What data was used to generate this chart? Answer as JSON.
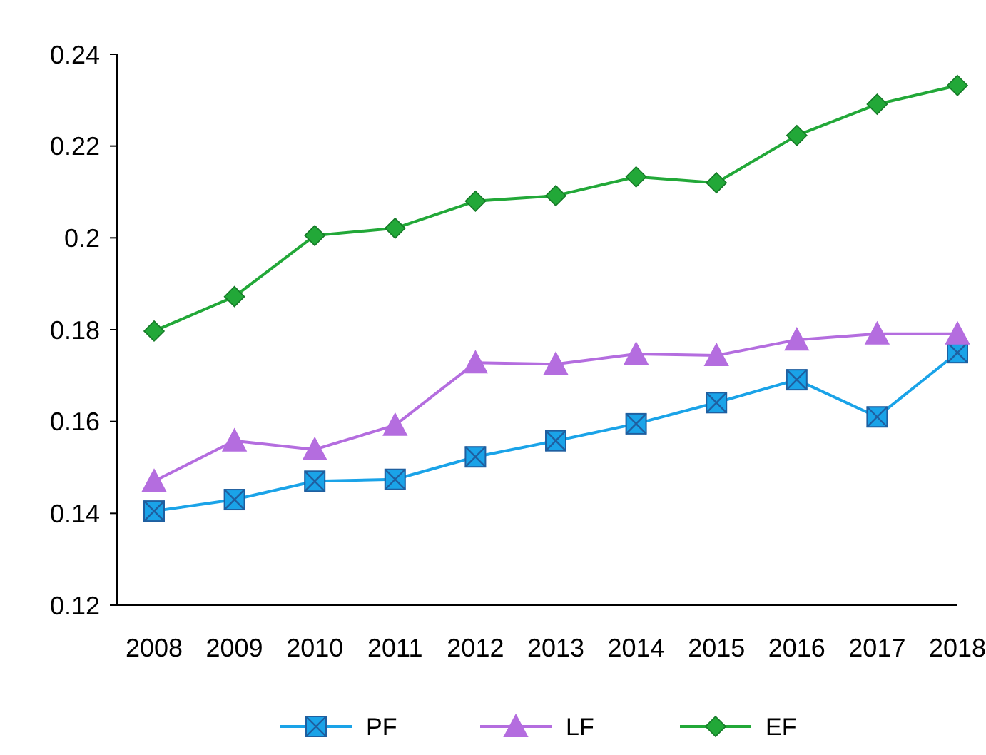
{
  "chart_data": {
    "type": "line",
    "categories": [
      "2008",
      "2009",
      "2010",
      "2011",
      "2012",
      "2013",
      "2014",
      "2015",
      "2016",
      "2017",
      "2018"
    ],
    "series": [
      {
        "name": "PF",
        "color": "#1aa3e8",
        "marker": "square",
        "values": [
          0.1405,
          0.143,
          0.147,
          0.1474,
          0.1523,
          0.1558,
          0.1595,
          0.1641,
          0.1691,
          0.161,
          0.175
        ]
      },
      {
        "name": "LF",
        "color": "#b46ddf",
        "marker": "triangle",
        "values": [
          0.147,
          0.1558,
          0.1539,
          0.1592,
          0.1728,
          0.1725,
          0.1747,
          0.1744,
          0.1778,
          0.1791,
          0.1791
        ]
      },
      {
        "name": "EF",
        "color": "#22a838",
        "marker": "diamond",
        "values": [
          0.1797,
          0.1872,
          0.2005,
          0.2021,
          0.208,
          0.2092,
          0.2133,
          0.212,
          0.2223,
          0.2291,
          0.2332
        ]
      }
    ],
    "ylim": [
      0.12,
      0.24
    ],
    "yticks": [
      0.12,
      0.14,
      0.16,
      0.18,
      0.2,
      0.22,
      0.24
    ],
    "grid": false,
    "legend": "bottom",
    "line_style": "solid"
  }
}
